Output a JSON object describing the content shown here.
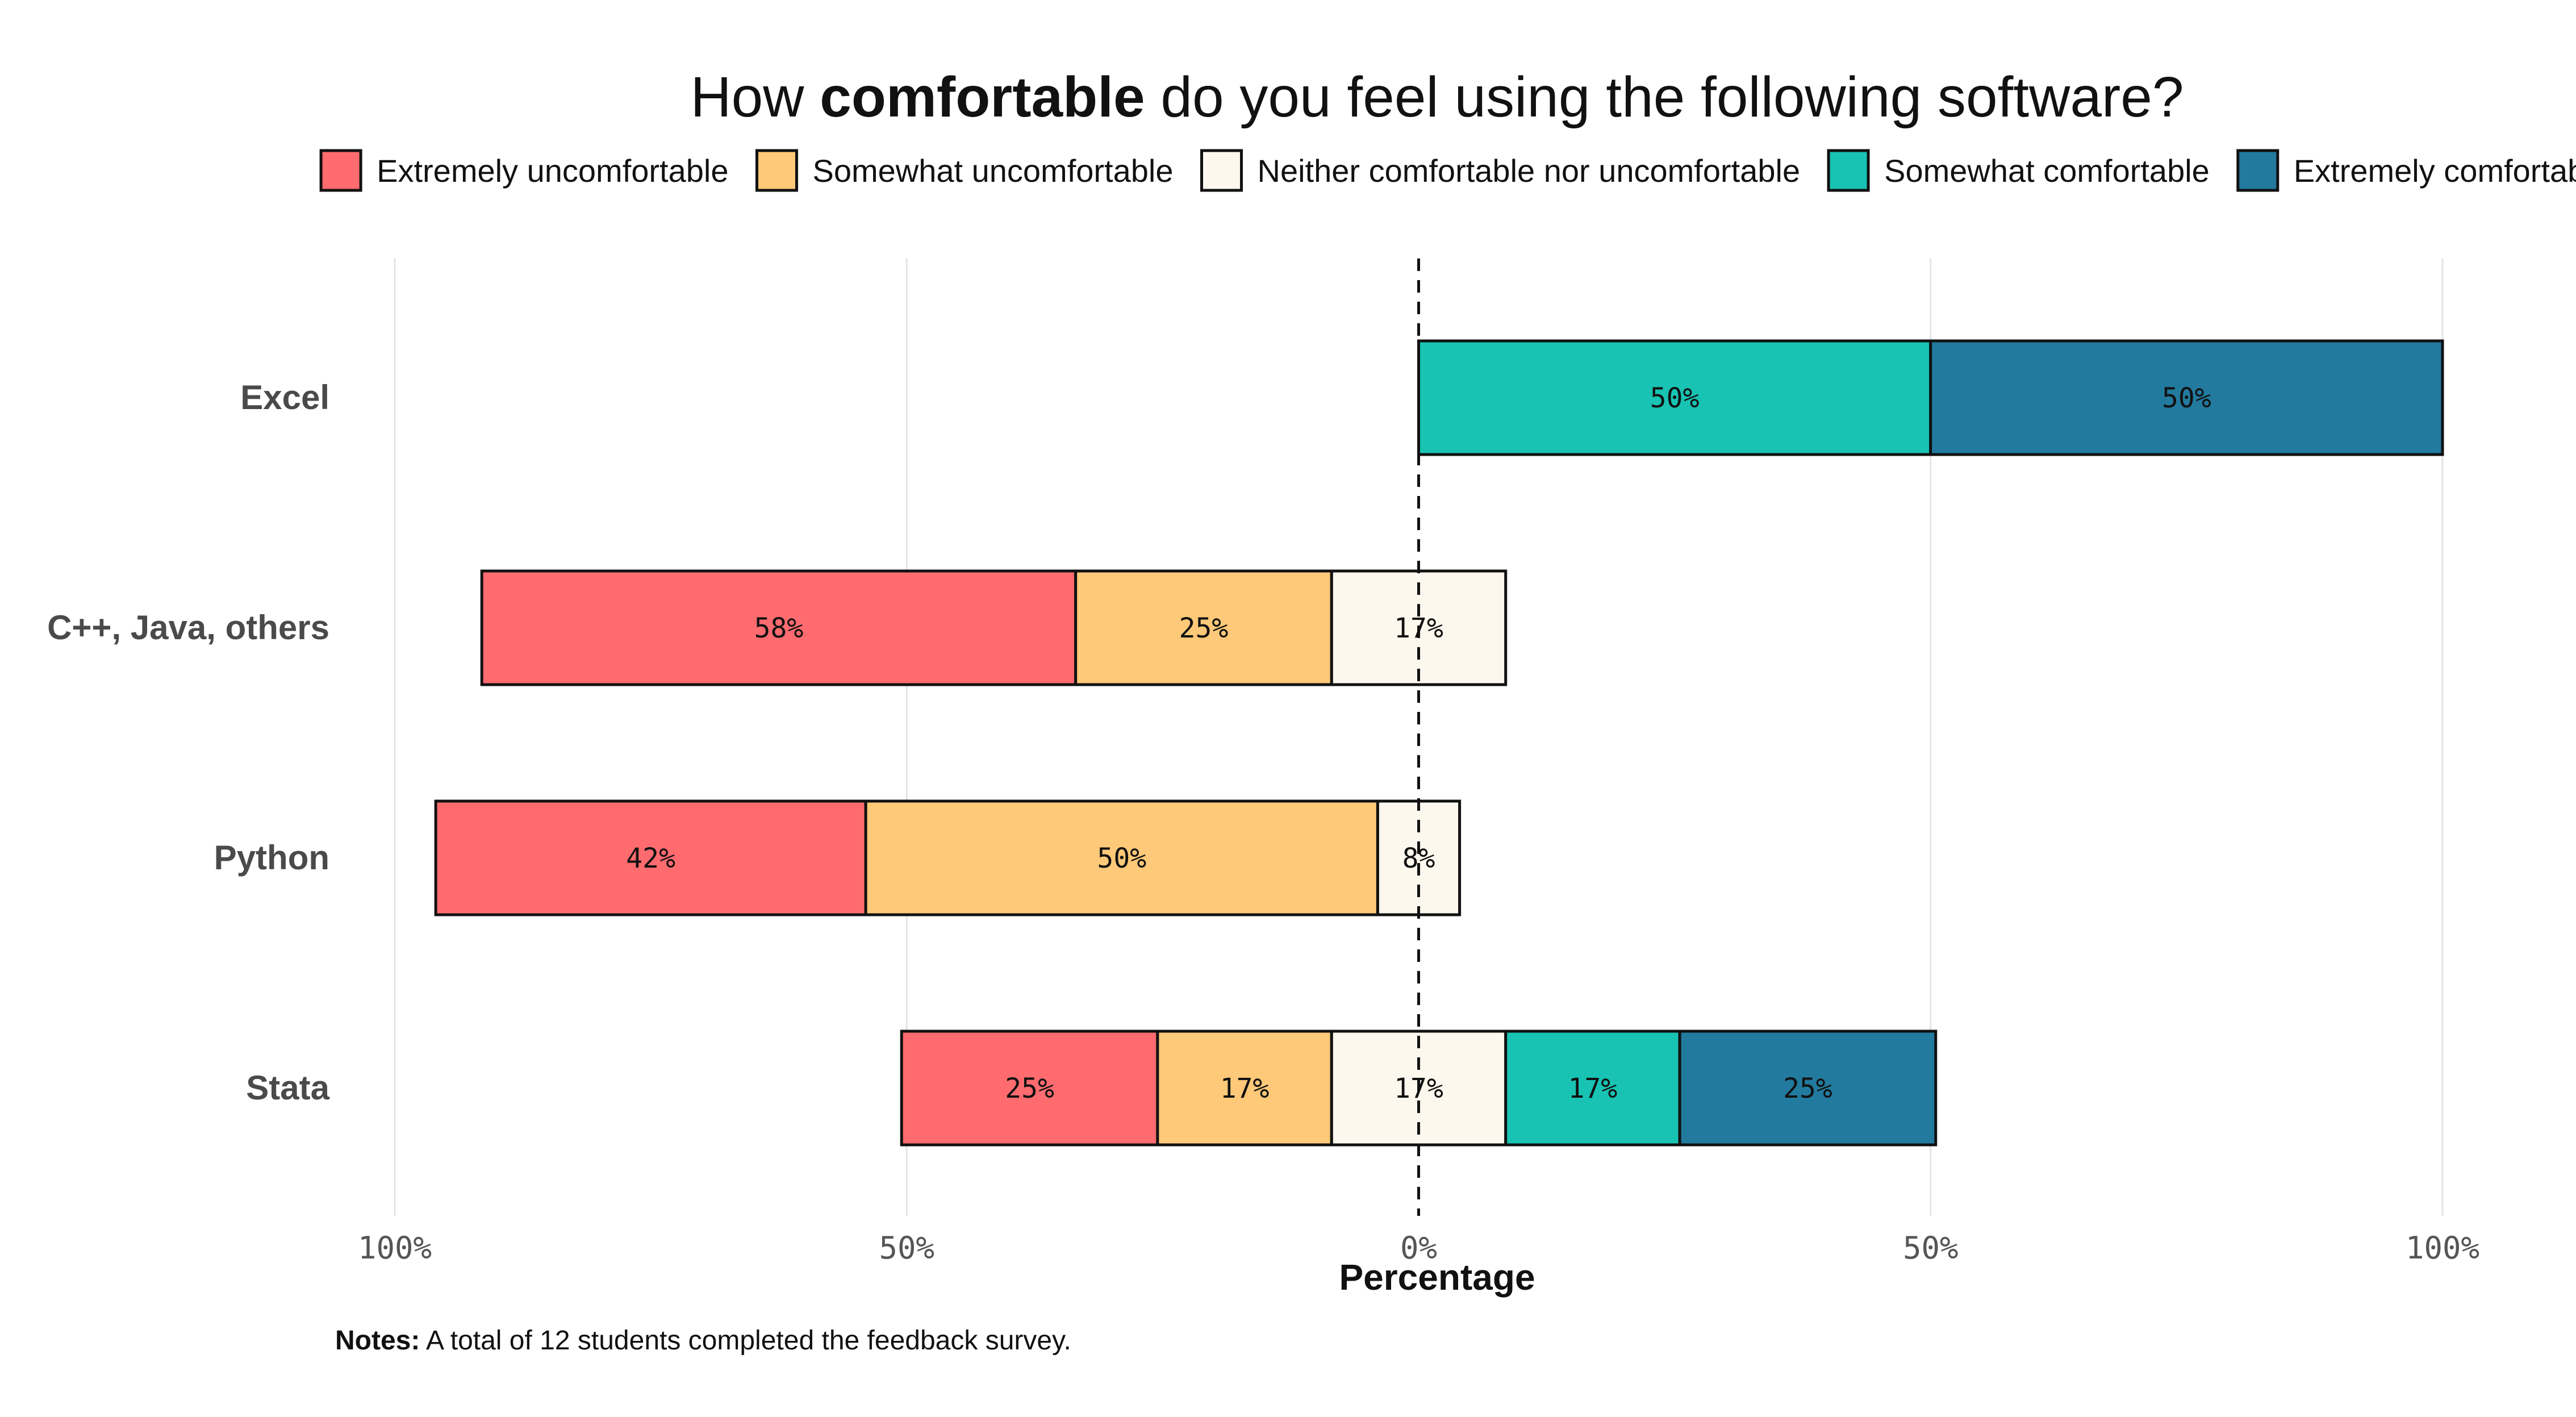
{
  "chart_data": {
    "type": "bar",
    "orientation": "horizontal",
    "layout": "diverging-stacked",
    "title": {
      "prefix": "How ",
      "emphasis": "comfortable",
      "suffix": " do you feel using the following software?"
    },
    "xlabel": "Percentage",
    "xlim": [
      -100,
      100
    ],
    "xticks": [
      {
        "value": -100,
        "label": "100%"
      },
      {
        "value": -50,
        "label": "50%"
      },
      {
        "value": 0,
        "label": "0%"
      },
      {
        "value": 50,
        "label": "50%"
      },
      {
        "value": 100,
        "label": "100%"
      }
    ],
    "grid": "vertical",
    "center_line": "dashed at 0",
    "legend_position": "top",
    "categories": [
      "Excel",
      "C++, Java, others",
      "Python",
      "Stata"
    ],
    "series": [
      {
        "name": "Extremely uncomfortable",
        "color": "#FF6B6F",
        "side": "negative",
        "values": [
          0,
          58,
          42,
          25
        ],
        "labels": [
          "",
          "58%",
          "42%",
          "25%"
        ]
      },
      {
        "name": "Somewhat uncomfortable",
        "color": "#FEC978",
        "side": "negative",
        "values": [
          0,
          25,
          50,
          17
        ],
        "labels": [
          "",
          "25%",
          "50%",
          "17%"
        ]
      },
      {
        "name": "Neither comfortable nor uncomfortable",
        "color": "#FCF8EE",
        "side": "neutral",
        "values": [
          0,
          17,
          8,
          17
        ],
        "labels": [
          "",
          "17%",
          "8%",
          "17%"
        ]
      },
      {
        "name": "Somewhat comfortable",
        "color": "#18C3B3",
        "side": "positive",
        "values": [
          50,
          0,
          0,
          17
        ],
        "labels": [
          "50%",
          "",
          "",
          "17%"
        ]
      },
      {
        "name": "Extremely comfortable",
        "color": "#227A9E",
        "side": "positive",
        "values": [
          50,
          0,
          0,
          25
        ],
        "labels": [
          "50%",
          "",
          "",
          "25%"
        ]
      }
    ],
    "note": {
      "label": "Notes:",
      "text": " A total of 12 students completed the feedback survey."
    }
  }
}
